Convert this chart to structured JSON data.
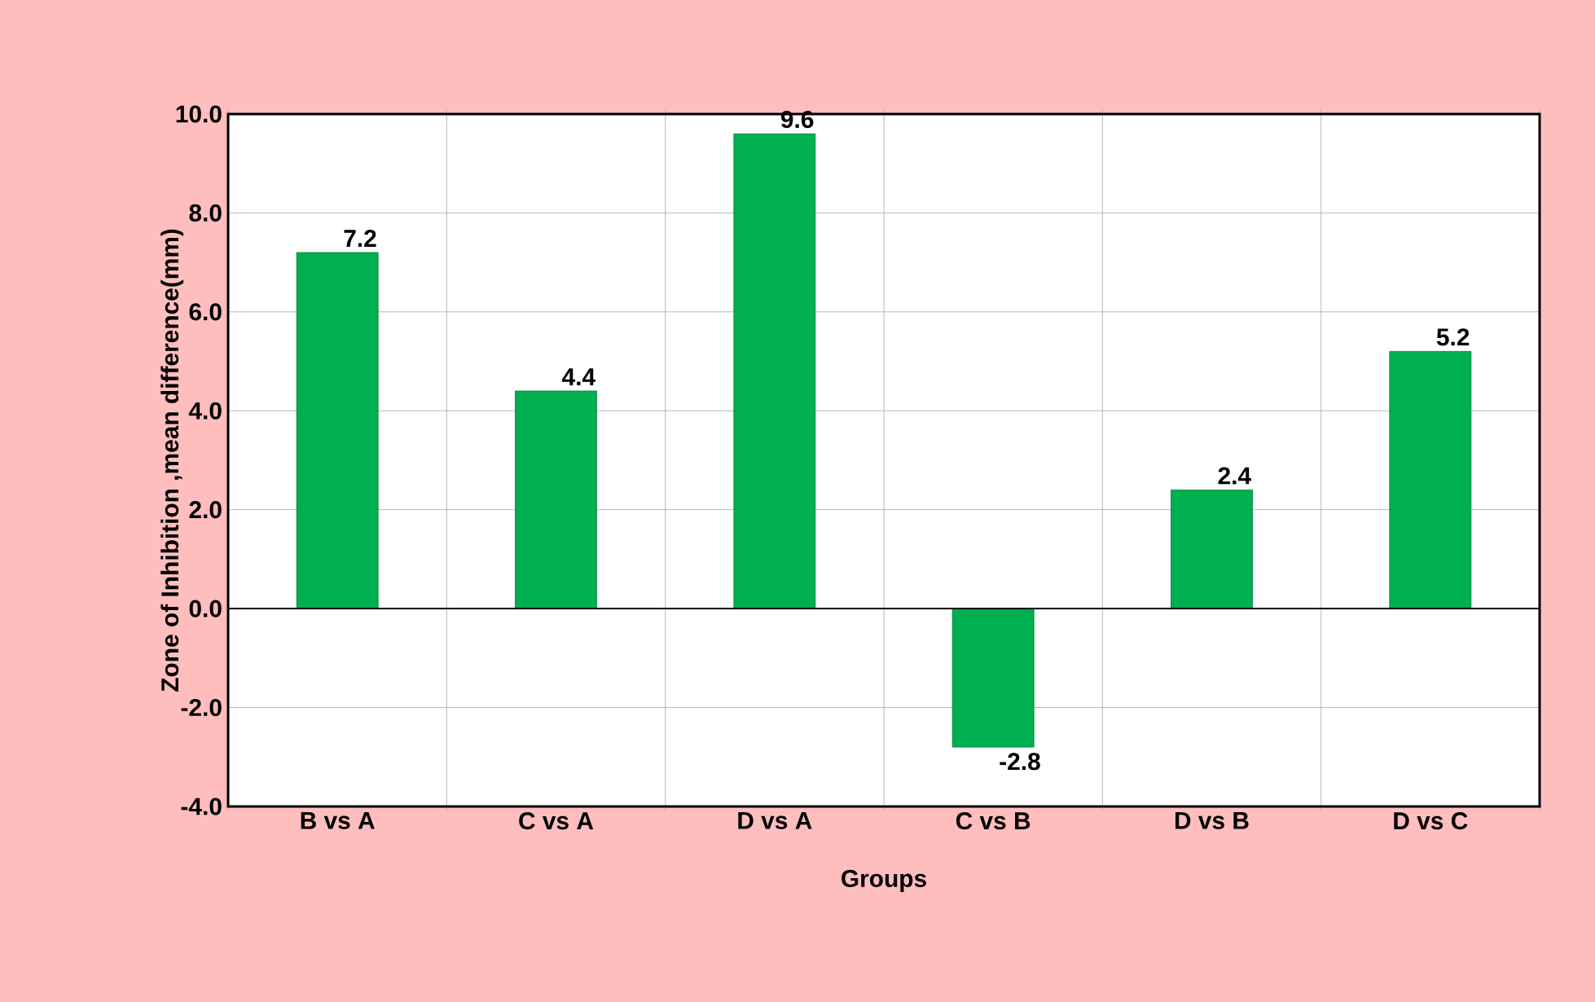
{
  "chart_data": {
    "type": "bar",
    "xlabel": "Groups",
    "ylabel": "Zone of Inhibition ,mean difference(mm)",
    "categories": [
      "B vs A",
      "C vs A",
      "D vs A",
      "C vs B",
      "D vs B",
      "D vs C"
    ],
    "values": [
      7.2,
      4.4,
      9.6,
      -2.8,
      2.4,
      5.2
    ],
    "color": "#00b050",
    "ylim": [
      -4,
      10
    ],
    "yticks": [
      {
        "value": -4,
        "label": "-4.0"
      },
      {
        "value": -2,
        "label": "-2.0"
      },
      {
        "value": 0,
        "label": "0.0"
      },
      {
        "value": 2,
        "label": "2.0"
      },
      {
        "value": 4,
        "label": "4.0"
      },
      {
        "value": 6,
        "label": "6.0"
      },
      {
        "value": 8,
        "label": "8.0"
      },
      {
        "value": 10,
        "label": "10.0"
      }
    ],
    "grid": true,
    "data_labels": true
  }
}
